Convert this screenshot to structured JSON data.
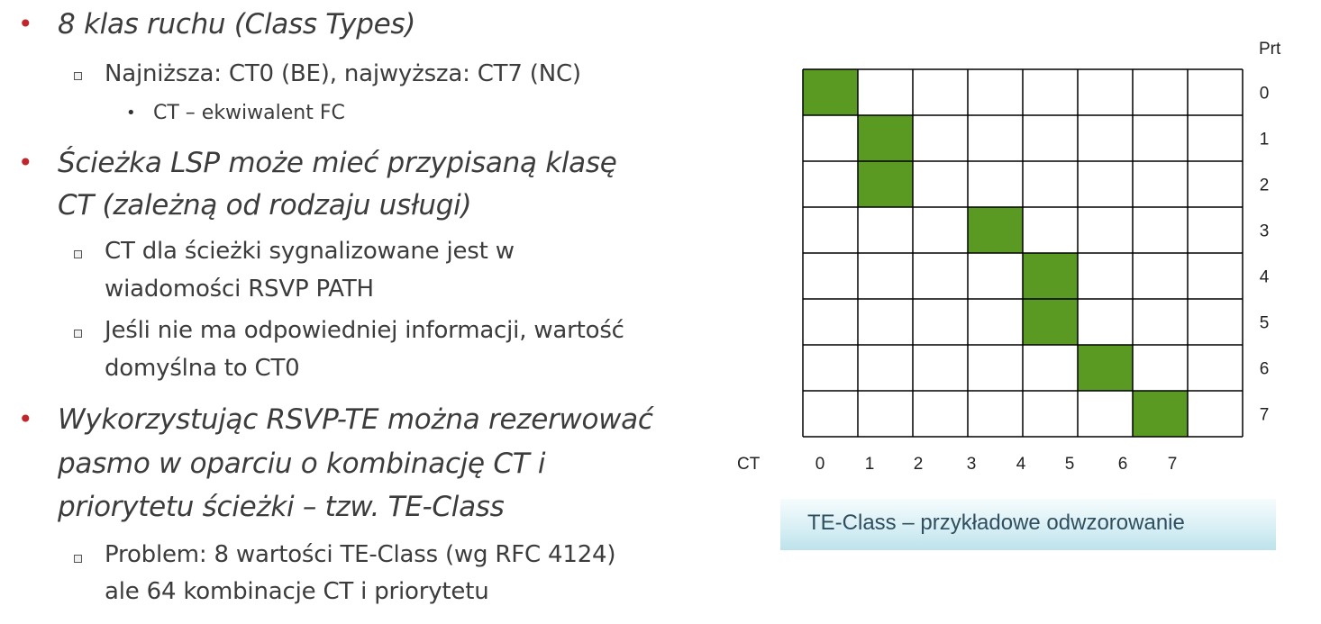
{
  "bullets": [
    {
      "text": "8 klas ruchu (Class Types)",
      "subs": [
        {
          "lines": [
            "Najniższa: CT0 (BE), najwyższa: CT7 (NC)"
          ],
          "subs": [
            "CT – ekwiwalent FC"
          ]
        }
      ]
    },
    {
      "lines": [
        "Ścieżka LSP może mieć przypisaną klasę",
        "CT (zależną od rodzaju usługi)"
      ],
      "subs": [
        {
          "lines": [
            "CT dla ścieżki sygnalizowane jest w",
            "wiadomości RSVP PATH"
          ]
        },
        {
          "lines": [
            "Jeśli nie ma odpowiedniej informacji, wartość",
            "domyślna to CT0"
          ]
        }
      ]
    },
    {
      "lines": [
        "Wykorzystując RSVP-TE można rezerwować",
        "pasmo w oparciu o kombinację CT i",
        "priorytetu ścieżki – tzw. TE-Class"
      ],
      "subs": [
        {
          "lines": [
            "Problem: 8 wartości TE-Class (wg RFC 4124)",
            "ale 64 kombinacje CT i priorytetu"
          ]
        }
      ]
    }
  ],
  "chart_data": {
    "type": "heatmap",
    "x_label": "CT",
    "y_label": "Prt",
    "x_ticks": [
      "0",
      "1",
      "2",
      "3",
      "4",
      "5",
      "6",
      "7"
    ],
    "y_ticks": [
      "0",
      "1",
      "2",
      "3",
      "4",
      "5",
      "6",
      "7"
    ],
    "filled_cells": [
      {
        "ct": 0,
        "prt": 0
      },
      {
        "ct": 1,
        "prt": 1
      },
      {
        "ct": 1,
        "prt": 2
      },
      {
        "ct": 3,
        "prt": 3
      },
      {
        "ct": 4,
        "prt": 4
      },
      {
        "ct": 4,
        "prt": 5
      },
      {
        "ct": 5,
        "prt": 6
      },
      {
        "ct": 6,
        "prt": 7
      }
    ],
    "fill_color": "#5b9a22"
  },
  "caption": "TE-Class – przykładowe odwzorowanie"
}
